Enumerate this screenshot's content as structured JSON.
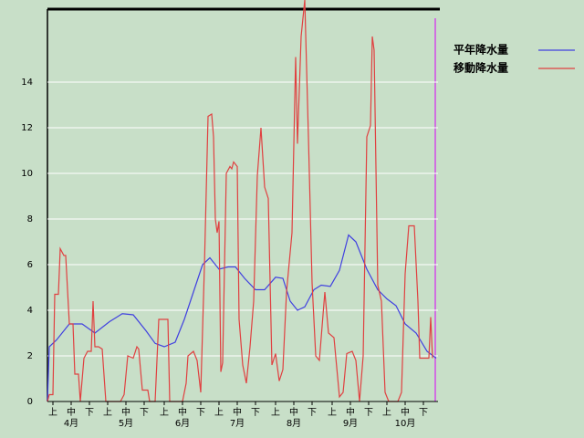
{
  "chart_data": {
    "type": "line",
    "xlim": [
      0,
      214
    ],
    "ylim": [
      0,
      17.2
    ],
    "yticks": [
      0,
      2,
      4,
      6,
      8,
      10,
      12,
      14
    ],
    "xticks": [
      {
        "value": 3,
        "label": "上"
      },
      {
        "value": 13,
        "label": "中"
      },
      {
        "value": 23,
        "label": "下"
      },
      {
        "value": 33,
        "label": "上"
      },
      {
        "value": 43,
        "label": "中"
      },
      {
        "value": 53,
        "label": "下"
      },
      {
        "value": 64,
        "label": "上"
      },
      {
        "value": 74,
        "label": "中"
      },
      {
        "value": 84,
        "label": "下"
      },
      {
        "value": 94,
        "label": "上"
      },
      {
        "value": 104,
        "label": "中"
      },
      {
        "value": 114,
        "label": "下"
      },
      {
        "value": 125,
        "label": "上"
      },
      {
        "value": 135,
        "label": "中"
      },
      {
        "value": 145,
        "label": "下"
      },
      {
        "value": 156,
        "label": "上"
      },
      {
        "value": 166,
        "label": "中"
      },
      {
        "value": 176,
        "label": "下"
      },
      {
        "value": 186,
        "label": "上"
      },
      {
        "value": 196,
        "label": "中"
      },
      {
        "value": 206,
        "label": "下"
      }
    ],
    "month_labels": [
      {
        "value": 13,
        "label": "4月"
      },
      {
        "value": 43,
        "label": "5月"
      },
      {
        "value": 74,
        "label": "6月"
      },
      {
        "value": 104,
        "label": "7月"
      },
      {
        "value": 135,
        "label": "8月"
      },
      {
        "value": 166,
        "label": "9月"
      },
      {
        "value": 196,
        "label": "10月"
      }
    ],
    "grid": true,
    "legend": "upper right",
    "series": [
      {
        "name": "平年降水量",
        "color": "#4040e0",
        "x": [
          0,
          1,
          5,
          12,
          19,
          26,
          34,
          41,
          47,
          54,
          59,
          64,
          70,
          75,
          80,
          85,
          89,
          94,
          99,
          103,
          108,
          114,
          119,
          125,
          129,
          133,
          137,
          141,
          146,
          150,
          155,
          160,
          165,
          169,
          175,
          181,
          186,
          191,
          196,
          202,
          208,
          213
        ],
        "values": [
          0,
          2.4,
          2.7,
          3.4,
          3.4,
          3.0,
          3.5,
          3.85,
          3.8,
          3.1,
          2.55,
          2.4,
          2.6,
          3.6,
          4.8,
          6.0,
          6.3,
          5.8,
          5.9,
          5.9,
          5.4,
          4.9,
          4.9,
          5.45,
          5.4,
          4.4,
          4.0,
          4.15,
          4.9,
          5.1,
          5.05,
          5.75,
          7.3,
          7.0,
          5.8,
          4.9,
          4.5,
          4.2,
          3.4,
          3.0,
          2.2,
          1.9
        ]
      },
      {
        "name": "移動降水量",
        "color": "#e04040",
        "x": [
          0,
          1,
          3,
          4,
          6,
          7,
          9,
          10,
          12,
          14,
          15,
          17,
          18,
          20,
          22,
          24,
          25,
          26,
          28,
          30,
          32,
          40,
          42,
          44,
          47,
          49,
          50,
          52,
          55,
          56,
          59,
          61,
          66,
          67,
          74,
          76,
          77,
          80,
          82,
          84,
          86,
          88,
          90,
          91,
          92,
          93,
          94,
          95,
          96,
          98,
          100,
          101,
          102,
          104,
          105,
          107,
          109,
          111,
          113,
          115,
          117,
          119,
          121,
          123,
          125,
          127,
          129,
          131,
          134,
          136,
          137,
          139,
          141,
          143,
          145,
          147,
          149,
          152,
          154,
          157,
          160,
          162,
          164,
          167,
          169,
          171,
          173,
          175,
          177,
          178,
          179,
          181,
          183,
          185,
          187,
          192,
          194,
          196,
          198,
          201,
          203,
          204,
          209,
          210,
          211
        ],
        "values": [
          0,
          0.3,
          0.3,
          4.7,
          4.7,
          6.7,
          6.4,
          6.4,
          3.4,
          3.4,
          1.2,
          1.2,
          0,
          1.9,
          2.2,
          2.2,
          4.4,
          2.4,
          2.4,
          2.3,
          0,
          0,
          0.3,
          2.0,
          1.9,
          2.4,
          2.3,
          0.5,
          0.5,
          0,
          0,
          3.6,
          3.6,
          0,
          0,
          0.8,
          2.0,
          2.2,
          1.8,
          0.4,
          5.9,
          12.5,
          12.6,
          11.6,
          8.0,
          7.4,
          7.9,
          1.3,
          1.7,
          10.0,
          10.3,
          10.2,
          10.5,
          10.3,
          3.6,
          1.6,
          0.8,
          2.4,
          4.4,
          9.9,
          12.0,
          9.4,
          8.9,
          1.6,
          2.1,
          0.9,
          1.4,
          4.8,
          7.4,
          15.1,
          11.3,
          16.0,
          17.6,
          11.6,
          5.2,
          2.0,
          1.8,
          4.8,
          3.0,
          2.8,
          0.2,
          0.4,
          2.1,
          2.2,
          1.8,
          0,
          2.0,
          11.6,
          12.1,
          16.0,
          15.4,
          5.1,
          4.4,
          0.4,
          0,
          0,
          0.4,
          5.6,
          7.7,
          7.7,
          4.4,
          1.9,
          1.9,
          3.7,
          1.9
        ]
      }
    ]
  }
}
